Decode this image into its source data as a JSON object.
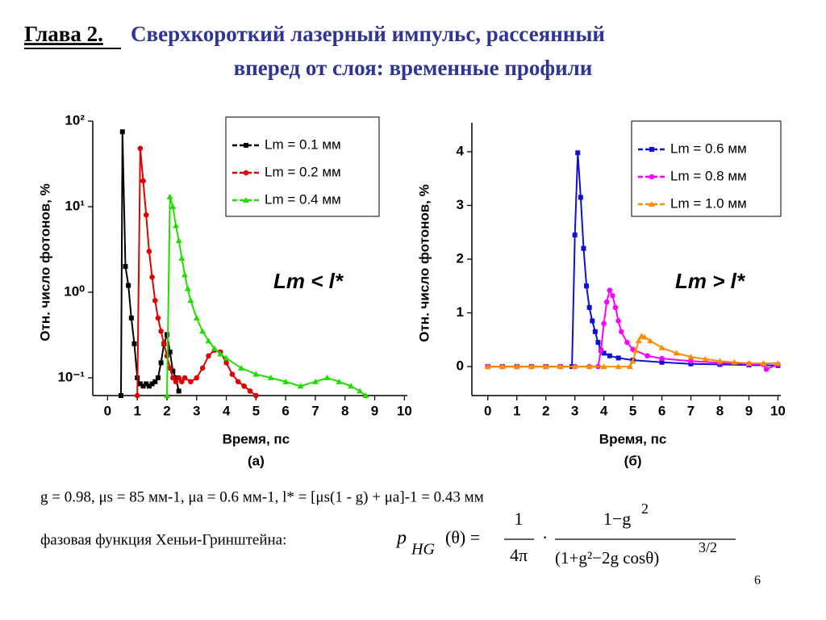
{
  "slide": {
    "chapter": "Глава 2.",
    "title_line1": "Сверхкороткий лазерный импульс, рассеянный",
    "title_line2": "вперед от слоя: временные профили",
    "params": "g = 0.98, μs = 85 мм-1, μa = 0.6 мм-1, l* = [μs(1 - g) + μa]-1 = 0.43 мм",
    "phase_label": "фазовая функция Хеньи-Гринштейна:",
    "formula": {
      "lhs": "p",
      "lhs_sub": "HG",
      "lhs_arg": "(θ)  =",
      "num1": "1",
      "den1": "4π",
      "dot": "·",
      "num2": "1−g",
      "num2_exp": "2",
      "den2": "(1+g²−2g cosθ)",
      "den2_exp": "3/2"
    },
    "page_number": "6"
  },
  "chart_data": [
    {
      "type": "line",
      "ylabel": "Отн. число фотонов, %",
      "xlabel": "Время, пс",
      "caption": "(а)",
      "annotation": "Lm < l*",
      "yscale": "log",
      "legend": "upper right",
      "xlim": [
        -0.5,
        10.1
      ],
      "xticks": [
        0,
        1,
        2,
        3,
        4,
        5,
        6,
        7,
        8,
        9,
        10
      ],
      "ylim": [
        0.062,
        100
      ],
      "yticks": [
        {
          "value": 0.1,
          "label": "10⁻¹"
        },
        {
          "value": 1,
          "label": "10⁰"
        },
        {
          "value": 10,
          "label": "10¹"
        },
        {
          "value": 100,
          "label": "10²"
        }
      ],
      "series": [
        {
          "name": "Lm = 0.1 мм",
          "color": "#000000",
          "marker": "square",
          "x": [
            0.45,
            0.5,
            0.6,
            0.7,
            0.8,
            0.9,
            1.0,
            1.1,
            1.2,
            1.3,
            1.4,
            1.5,
            1.6,
            1.7,
            1.8,
            1.9,
            2.0,
            2.1,
            2.2,
            2.3,
            2.4
          ],
          "values": [
            0.062,
            75,
            2,
            1.2,
            0.5,
            0.25,
            0.1,
            0.085,
            0.08,
            0.085,
            0.08,
            0.085,
            0.09,
            0.1,
            0.15,
            0.25,
            0.32,
            0.2,
            0.12,
            0.1,
            0.07
          ]
        },
        {
          "name": "Lm = 0.2 мм",
          "color": "#e00000",
          "marker": "circle",
          "x": [
            1.0,
            1.1,
            1.2,
            1.3,
            1.4,
            1.5,
            1.6,
            1.7,
            1.8,
            1.9,
            2.0,
            2.1,
            2.2,
            2.3,
            2.4,
            2.5,
            2.6,
            2.8,
            3.0,
            3.2,
            3.4,
            3.6,
            3.8,
            4.0,
            4.2,
            4.4,
            4.6,
            4.8,
            5.0
          ],
          "values": [
            0.062,
            48,
            20,
            8,
            3,
            1.5,
            0.8,
            0.5,
            0.35,
            0.25,
            0.18,
            0.13,
            0.1,
            0.09,
            0.1,
            0.09,
            0.1,
            0.09,
            0.1,
            0.13,
            0.18,
            0.21,
            0.2,
            0.15,
            0.11,
            0.09,
            0.08,
            0.07,
            0.062
          ]
        },
        {
          "name": "Lm = 0.4 мм",
          "color": "#22dd00",
          "marker": "triangle",
          "x": [
            2.0,
            2.1,
            2.2,
            2.3,
            2.4,
            2.5,
            2.6,
            2.7,
            2.8,
            3.0,
            3.2,
            3.4,
            3.6,
            3.8,
            4.0,
            4.5,
            5.0,
            5.5,
            6.0,
            6.5,
            7.0,
            7.4,
            7.8,
            8.2,
            8.5,
            8.7
          ],
          "values": [
            0.062,
            13,
            10,
            6,
            4,
            2.5,
            1.6,
            1.1,
            0.8,
            0.5,
            0.35,
            0.27,
            0.22,
            0.19,
            0.17,
            0.13,
            0.11,
            0.1,
            0.09,
            0.08,
            0.09,
            0.1,
            0.09,
            0.08,
            0.07,
            0.062
          ]
        }
      ]
    },
    {
      "type": "line",
      "ylabel": "Отн. число фотонов, %",
      "xlabel": "Время, пс",
      "caption": "(б)",
      "annotation": "Lm > l*",
      "legend": "upper right",
      "xlim": [
        -0.55,
        10.1
      ],
      "xticks": [
        0,
        1,
        2,
        3,
        4,
        5,
        6,
        7,
        8,
        9,
        10
      ],
      "ylim": [
        -0.54,
        4.54
      ],
      "yticks": [
        0,
        1,
        2,
        3,
        4
      ],
      "series": [
        {
          "name": "Lm = 0.6 мм",
          "color": "#1010d0",
          "marker": "square",
          "x": [
            0,
            0.5,
            1,
            1.5,
            2,
            2.5,
            2.9,
            3.0,
            3.1,
            3.2,
            3.3,
            3.4,
            3.5,
            3.6,
            3.7,
            3.8,
            3.9,
            4.0,
            4.2,
            4.5,
            5,
            6,
            7,
            8,
            9,
            10
          ],
          "values": [
            0,
            0,
            0,
            0,
            0,
            0,
            0,
            2.45,
            3.98,
            3.15,
            2.2,
            1.5,
            1.1,
            0.85,
            0.65,
            0.45,
            0.3,
            0.25,
            0.2,
            0.16,
            0.12,
            0.08,
            0.05,
            0.04,
            0.03,
            0.02
          ]
        },
        {
          "name": "Lm = 0.8 мм",
          "color": "#ff00ff",
          "marker": "circle",
          "x": [
            0,
            0.5,
            1,
            1.5,
            2,
            2.5,
            3,
            3.5,
            3.8,
            3.9,
            4.0,
            4.1,
            4.2,
            4.3,
            4.4,
            4.5,
            4.6,
            4.8,
            5.0,
            5.5,
            6,
            7,
            8,
            9,
            9.5,
            9.6,
            10
          ],
          "values": [
            0,
            0,
            0,
            0,
            0,
            0,
            0,
            0,
            0,
            0.3,
            0.8,
            1.2,
            1.42,
            1.32,
            1.1,
            0.85,
            0.65,
            0.45,
            0.32,
            0.2,
            0.15,
            0.1,
            0.07,
            0.05,
            0.04,
            -0.05,
            0.04
          ]
        },
        {
          "name": "Lm = 1.0 мм",
          "color": "#ff8c00",
          "marker": "triangle",
          "x": [
            0,
            0.5,
            1,
            1.5,
            2,
            2.5,
            3,
            3.5,
            4,
            4.5,
            4.9,
            5.0,
            5.1,
            5.2,
            5.3,
            5.4,
            5.6,
            6.0,
            6.5,
            7,
            7.5,
            8,
            8.5,
            9,
            9.5,
            10
          ],
          "values": [
            0,
            0,
            0,
            0,
            0,
            0,
            0,
            0,
            0,
            0,
            0,
            0.1,
            0.3,
            0.48,
            0.57,
            0.55,
            0.48,
            0.35,
            0.25,
            0.18,
            0.14,
            0.1,
            0.08,
            0.06,
            0.06,
            0.06
          ]
        }
      ]
    }
  ]
}
